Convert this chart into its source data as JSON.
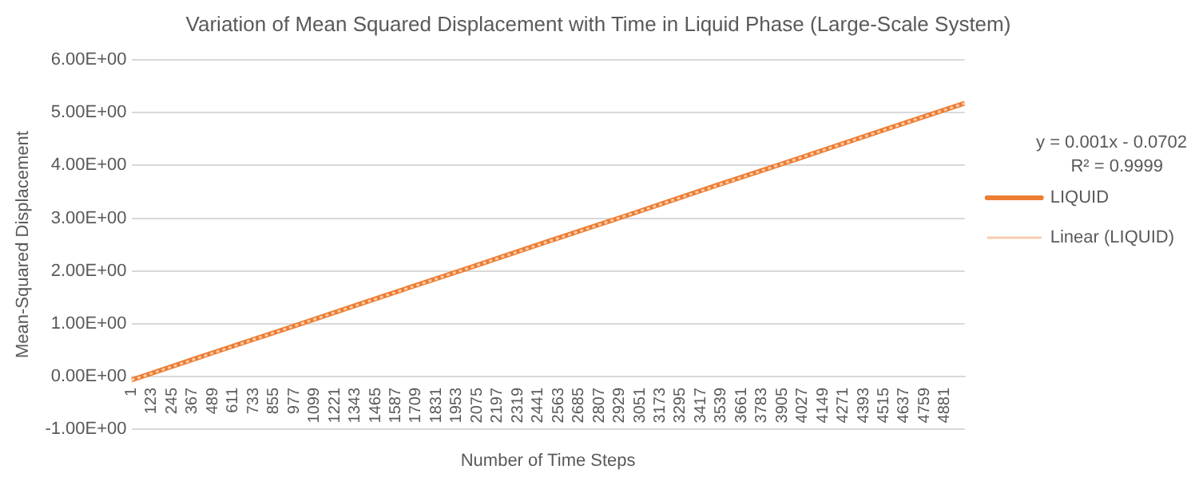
{
  "chart_data": {
    "type": "line",
    "title": "Variation of Mean Squared Displacement with Time in Liquid Phase (Large-Scale System)",
    "xlabel": "Number of Time Steps",
    "ylabel": "Mean-Squared Displacement",
    "xlim": [
      1,
      5000
    ],
    "xticks": [
      1,
      123,
      245,
      367,
      489,
      611,
      733,
      855,
      977,
      1099,
      1221,
      1343,
      1465,
      1587,
      1709,
      1831,
      1953,
      2075,
      2197,
      2319,
      2441,
      2563,
      2685,
      2807,
      2929,
      3051,
      3173,
      3295,
      3417,
      3539,
      3661,
      3783,
      3905,
      4027,
      4149,
      4271,
      4393,
      4515,
      4637,
      4759,
      4881
    ],
    "ylim": [
      -1,
      6
    ],
    "yticks": [
      {
        "value": -1,
        "label": "-1.00E+00"
      },
      {
        "value": 0,
        "label": "0.00E+00"
      },
      {
        "value": 1,
        "label": "1.00E+00"
      },
      {
        "value": 2,
        "label": "2.00E+00"
      },
      {
        "value": 3,
        "label": "3.00E+00"
      },
      {
        "value": 4,
        "label": "4.00E+00"
      },
      {
        "value": 5,
        "label": "5.00E+00"
      },
      {
        "value": 6,
        "label": "6.00E+00"
      }
    ],
    "grid": "y",
    "legend": "right",
    "marker": "none",
    "annotations": [
      "y = 0.001x - 0.0702",
      "R² = 0.9999"
    ],
    "series": [
      {
        "name": "LIQUID",
        "color": "#ed7d31",
        "line_style": "solid",
        "x": [
          1,
          500,
          1000,
          1500,
          2000,
          2500,
          3000,
          3500,
          4000,
          4500,
          5000
        ],
        "values": [
          -0.07,
          0.46,
          0.98,
          1.51,
          2.03,
          2.56,
          3.08,
          3.61,
          4.13,
          4.66,
          5.18
        ]
      },
      {
        "name": "Linear (LIQUID)",
        "type": "line",
        "color": "#f8cbad",
        "line_style": "dotted",
        "x": [
          1,
          5000
        ],
        "values": [
          -0.07,
          5.18
        ]
      }
    ]
  }
}
